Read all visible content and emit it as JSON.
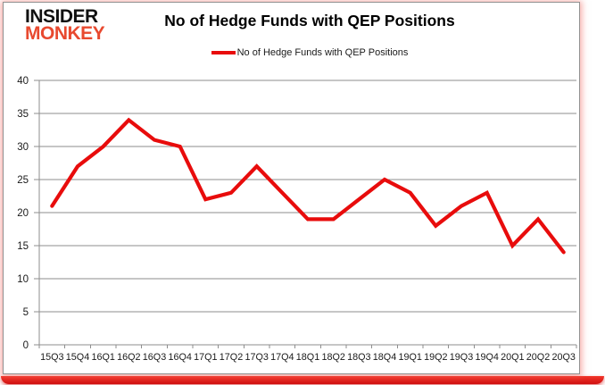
{
  "logo": {
    "line1": "INSIDER",
    "line2": "MONKEY",
    "color_line1": "#111111",
    "color_line2": "#e8492f"
  },
  "title": "No of Hedge Funds with QEP Positions",
  "legend": {
    "label": "No of Hedge Funds with QEP Positions",
    "swatch_color": "#e80c0c"
  },
  "chart_data": {
    "type": "line",
    "title": "No of Hedge Funds with QEP Positions",
    "categories": [
      "15Q3",
      "15Q4",
      "16Q1",
      "16Q2",
      "16Q3",
      "16Q4",
      "17Q1",
      "17Q2",
      "17Q3",
      "17Q4",
      "18Q1",
      "18Q2",
      "18Q3",
      "18Q4",
      "19Q1",
      "19Q2",
      "19Q3",
      "19Q4",
      "20Q1",
      "20Q2",
      "20Q3"
    ],
    "series": [
      {
        "name": "No of Hedge Funds with QEP Positions",
        "color": "#e80c0c",
        "values": [
          21,
          27,
          30,
          34,
          31,
          30,
          22,
          23,
          27,
          23,
          19,
          19,
          22,
          25,
          23,
          18,
          21,
          23,
          15,
          19,
          14
        ]
      }
    ],
    "xlabel": "",
    "ylabel": "",
    "ylim": [
      0,
      40
    ],
    "ytick_step": 5,
    "grid": true,
    "legend_position": "top-center"
  },
  "colors": {
    "grid": "#8e8e8e",
    "axis": "#8e8e8e",
    "tick_label": "#1a1a1a",
    "card_border": "#919191",
    "bottom_bar": "#e01212"
  }
}
